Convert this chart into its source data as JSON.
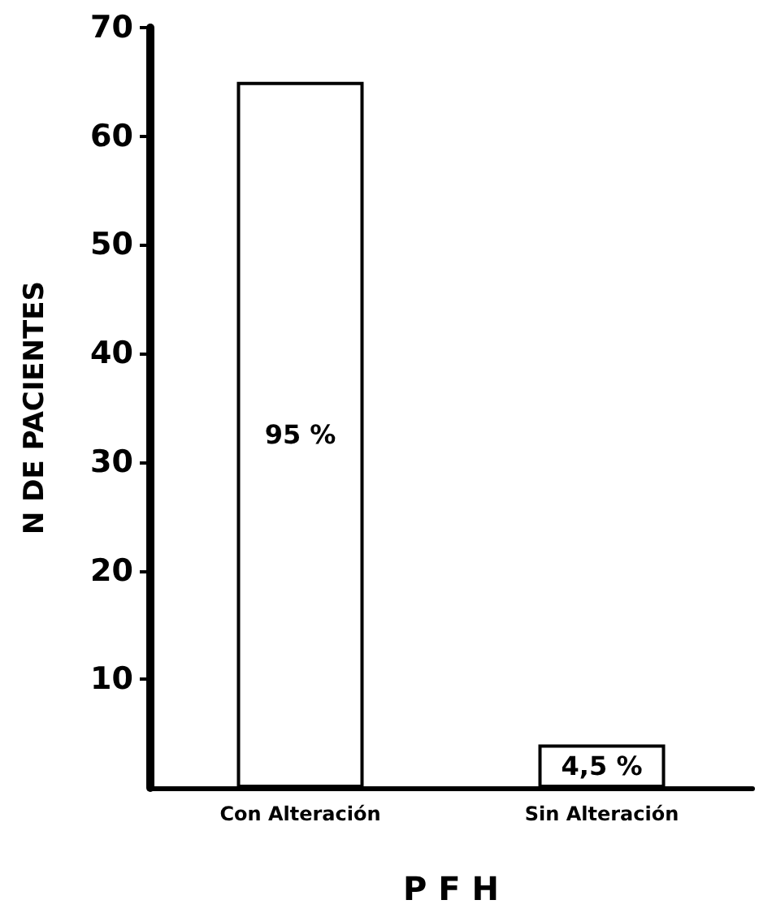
{
  "chart_data": {
    "type": "bar",
    "xlabel": "P F H",
    "ylabel": "N DE PACIENTES",
    "categories": [
      "Con Alteración",
      "Sin Alteración"
    ],
    "values": [
      65,
      4
    ],
    "color": "#ffffff",
    "annotations": [
      "95 %",
      "4,5 %"
    ],
    "ylim": [
      0,
      70
    ],
    "yticks": [
      10,
      20,
      30,
      40,
      50,
      60,
      70
    ],
    "grid": false
  }
}
